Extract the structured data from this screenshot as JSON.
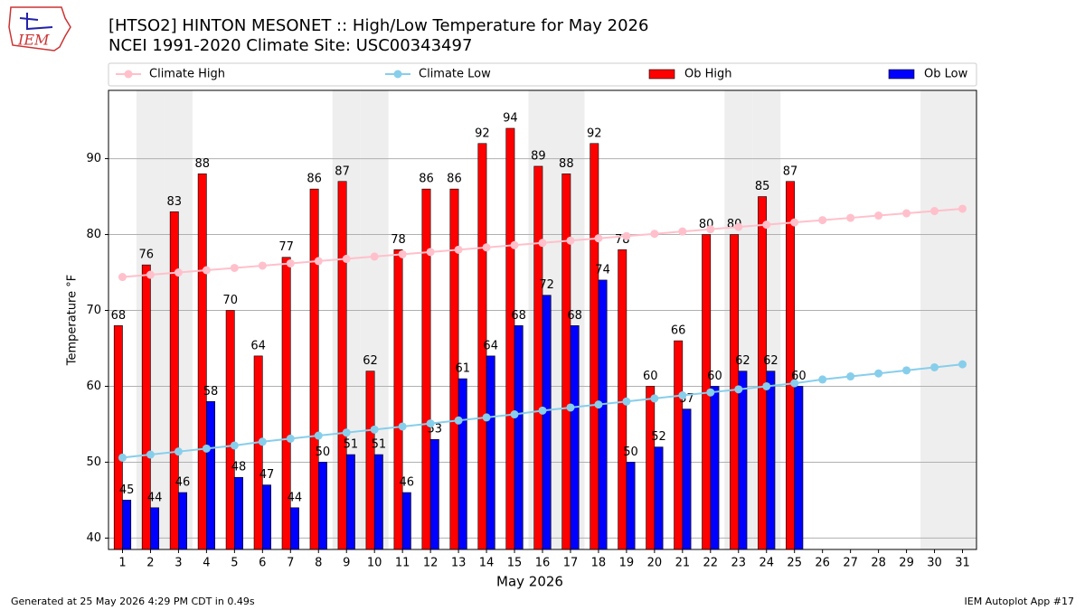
{
  "chart_data": {
    "type": "bar",
    "title": "[HTSO2] HINTON MESONET :: High/Low Temperature for May 2026",
    "subtitle": "NCEI 1991-2020 Climate Site: USC00343497",
    "xlabel": "May 2026",
    "ylabel": "Temperature °F",
    "logo_text": "IEM",
    "footer_left": "Generated at 25 May 2026 4:29 PM CDT in 0.49s",
    "footer_right": "IEM Autoplot App #17",
    "categories": [
      "1",
      "2",
      "3",
      "4",
      "5",
      "6",
      "7",
      "8",
      "9",
      "10",
      "11",
      "12",
      "13",
      "14",
      "15",
      "16",
      "17",
      "18",
      "19",
      "20",
      "21",
      "22",
      "23",
      "24",
      "25",
      "26",
      "27",
      "28",
      "29",
      "30",
      "31"
    ],
    "shaded_days": [
      "2",
      "3",
      "9",
      "10",
      "16",
      "17",
      "23",
      "24",
      "30",
      "31"
    ],
    "series": [
      {
        "name": "Climate High",
        "type": "line",
        "color": "#ffc0cb",
        "values": [
          74.4,
          74.7,
          75.0,
          75.3,
          75.6,
          75.9,
          76.2,
          76.5,
          76.8,
          77.1,
          77.4,
          77.7,
          78.0,
          78.3,
          78.6,
          78.9,
          79.2,
          79.5,
          79.8,
          80.1,
          80.4,
          80.7,
          81.0,
          81.3,
          81.6,
          81.9,
          82.2,
          82.5,
          82.8,
          83.1,
          83.4
        ]
      },
      {
        "name": "Climate Low",
        "type": "line",
        "color": "#87ceeb",
        "values": [
          50.6,
          51.0,
          51.4,
          51.8,
          52.2,
          52.7,
          53.1,
          53.5,
          53.9,
          54.3,
          54.7,
          55.1,
          55.5,
          55.9,
          56.3,
          56.8,
          57.2,
          57.6,
          58.0,
          58.4,
          58.8,
          59.2,
          59.6,
          60.0,
          60.4,
          60.9,
          61.3,
          61.7,
          62.1,
          62.5,
          62.9
        ]
      },
      {
        "name": "Ob High",
        "type": "bar",
        "color": "#ff0000",
        "values": [
          68,
          76,
          83,
          88,
          70,
          64,
          77,
          86,
          87,
          62,
          78,
          86,
          86,
          92,
          94,
          89,
          88,
          92,
          78,
          60,
          66,
          80,
          80,
          85,
          87,
          null,
          null,
          null,
          null,
          null,
          null
        ]
      },
      {
        "name": "Ob Low",
        "type": "bar",
        "color": "#0000ff",
        "values": [
          45,
          44,
          46,
          58,
          48,
          47,
          44,
          50,
          51,
          51,
          46,
          53,
          61,
          64,
          68,
          72,
          68,
          74,
          50,
          52,
          57,
          60,
          62,
          62,
          60,
          null,
          null,
          null,
          null,
          null,
          null
        ]
      }
    ],
    "ylim": [
      38.5,
      99
    ],
    "yticks": [
      40,
      50,
      60,
      70,
      80,
      90
    ],
    "grid": true,
    "legend": "top"
  }
}
